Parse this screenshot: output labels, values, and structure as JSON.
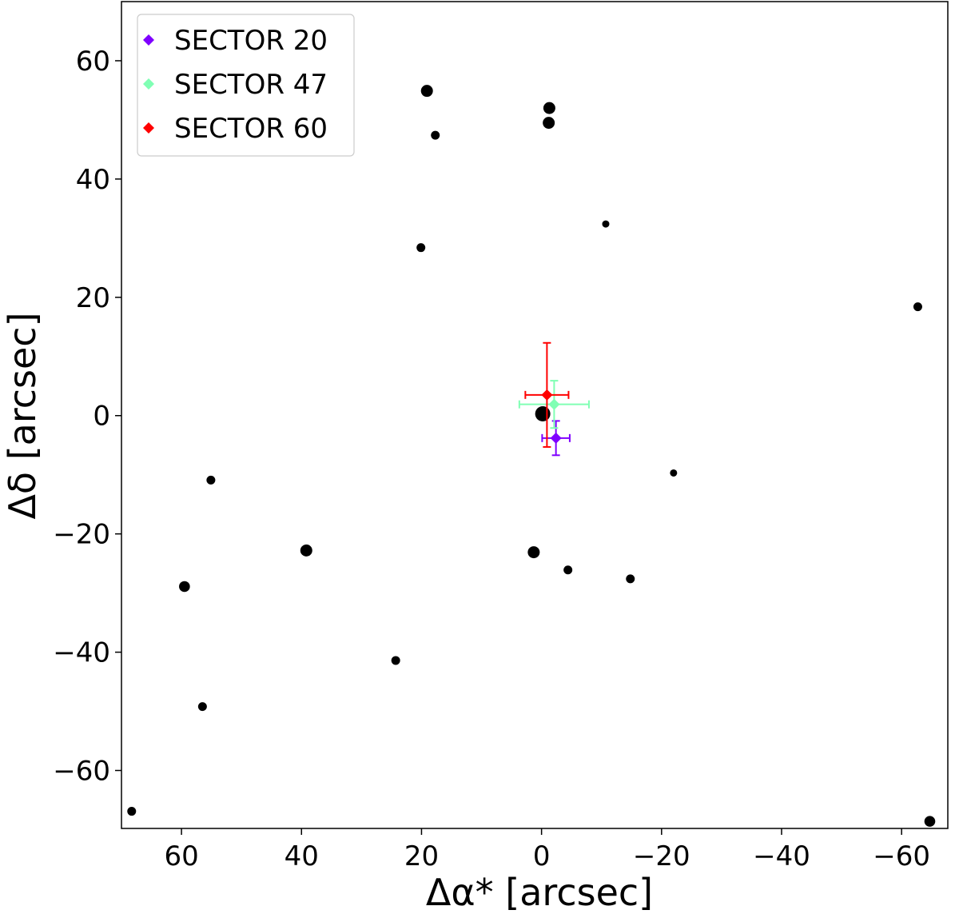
{
  "chart_data": {
    "type": "scatter",
    "xlabel": "Δα* [arcsec]",
    "ylabel": "Δδ [arcsec]",
    "xlim": [
      70,
      -67.7
    ],
    "ylim": [
      -69.8,
      70
    ],
    "xticks": [
      60,
      40,
      20,
      0,
      -20,
      -40,
      -60
    ],
    "yticks": [
      60,
      40,
      20,
      0,
      -20,
      -40,
      -60
    ],
    "xtick_labels": [
      "60",
      "40",
      "20",
      "0",
      "−20",
      "−40",
      "−60"
    ],
    "ytick_labels": [
      "60",
      "40",
      "20",
      "0",
      "−20",
      "−40",
      "−60"
    ],
    "grid": false,
    "legend_position": "top-left",
    "stars": [
      {
        "x": 19.1,
        "y": 54.9,
        "size": "large"
      },
      {
        "x": -1.3,
        "y": 52.0,
        "size": "large"
      },
      {
        "x": -1.2,
        "y": 49.5,
        "size": "large"
      },
      {
        "x": 17.7,
        "y": 47.4,
        "size": "small"
      },
      {
        "x": -10.7,
        "y": 32.4,
        "size": "tiny"
      },
      {
        "x": 20.1,
        "y": 28.4,
        "size": "small"
      },
      {
        "x": -62.7,
        "y": 18.4,
        "size": "small"
      },
      {
        "x": -0.2,
        "y": 0.3,
        "size": "largest"
      },
      {
        "x": 55.1,
        "y": -10.9,
        "size": "small"
      },
      {
        "x": -22.0,
        "y": -9.7,
        "size": "tiny"
      },
      {
        "x": 39.2,
        "y": -22.8,
        "size": "large"
      },
      {
        "x": 1.3,
        "y": -23.1,
        "size": "large"
      },
      {
        "x": -4.4,
        "y": -26.1,
        "size": "small"
      },
      {
        "x": -14.8,
        "y": -27.6,
        "size": "small"
      },
      {
        "x": 59.5,
        "y": -28.9,
        "size": "medium"
      },
      {
        "x": 24.3,
        "y": -41.4,
        "size": "small"
      },
      {
        "x": 56.5,
        "y": -49.2,
        "size": "small"
      },
      {
        "x": 68.3,
        "y": -66.9,
        "size": "small"
      },
      {
        "x": -64.7,
        "y": -68.6,
        "size": "medium"
      }
    ],
    "series": [
      {
        "name": "SECTOR 20",
        "color": "#7f00ff",
        "x": -2.4,
        "y": -3.8,
        "xerr": 2.3,
        "yerr": 2.9
      },
      {
        "name": "SECTOR 47",
        "color": "#80ffb4",
        "x": -2.1,
        "y": 1.9,
        "xerr": 5.8,
        "yerr": 4.0
      },
      {
        "name": "SECTOR 60",
        "color": "#ff0000",
        "x": -0.9,
        "y": 3.5,
        "xerr": 3.6,
        "yerr": 8.8
      }
    ]
  }
}
